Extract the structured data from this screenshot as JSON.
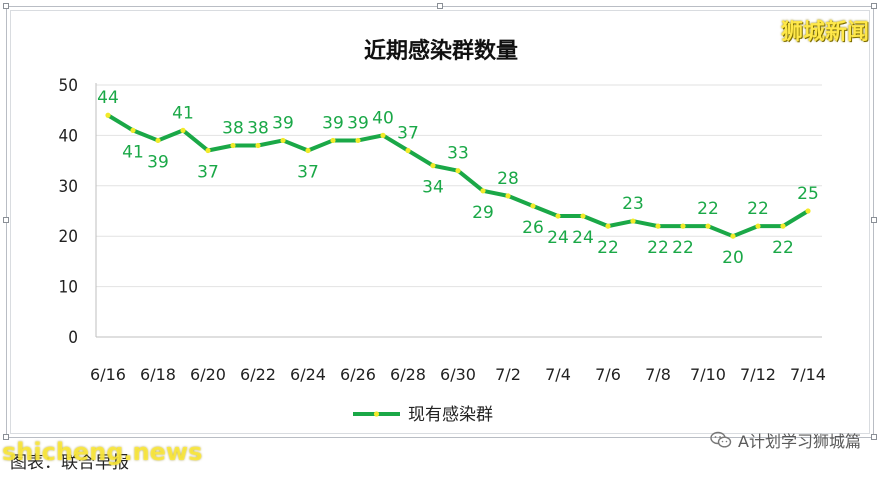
{
  "brand_logo": "狮城新闻",
  "watermark_right": "A计划学习狮城篇",
  "site_watermark": "shicheng.news",
  "source_caption": "图表：联合早报",
  "colors": {
    "line": "#1aa847",
    "marker": "#f2ea2a",
    "label": "#1aa847",
    "grid": "#e2e2e2",
    "axis_text": "#222222"
  },
  "chart_data": {
    "type": "line",
    "title": "近期感染群数量",
    "xlabel": "",
    "ylabel": "",
    "ylim": [
      0,
      50
    ],
    "yticks": [
      0,
      10,
      20,
      30,
      40,
      50
    ],
    "grid": true,
    "legend": "bottom",
    "x": [
      "6/16",
      "6/17",
      "6/18",
      "6/19",
      "6/20",
      "6/21",
      "6/22",
      "6/23",
      "6/24",
      "6/25",
      "6/26",
      "6/27",
      "6/28",
      "6/29",
      "6/30",
      "7/1",
      "7/2",
      "7/3",
      "7/4",
      "7/5",
      "7/6",
      "7/7",
      "7/8",
      "7/9",
      "7/10",
      "7/11",
      "7/12",
      "7/13",
      "7/14"
    ],
    "x_tick_labels": [
      "6/16",
      "6/18",
      "6/20",
      "6/22",
      "6/24",
      "6/26",
      "6/28",
      "6/30",
      "7/2",
      "7/4",
      "7/6",
      "7/8",
      "7/10",
      "7/12",
      "7/14"
    ],
    "series": [
      {
        "name": "现有感染群",
        "values": [
          44,
          41,
          39,
          41,
          37,
          38,
          38,
          39,
          37,
          39,
          39,
          40,
          37,
          34,
          33,
          29,
          28,
          26,
          24,
          24,
          22,
          23,
          22,
          22,
          22,
          20,
          22,
          22,
          25
        ]
      }
    ]
  }
}
